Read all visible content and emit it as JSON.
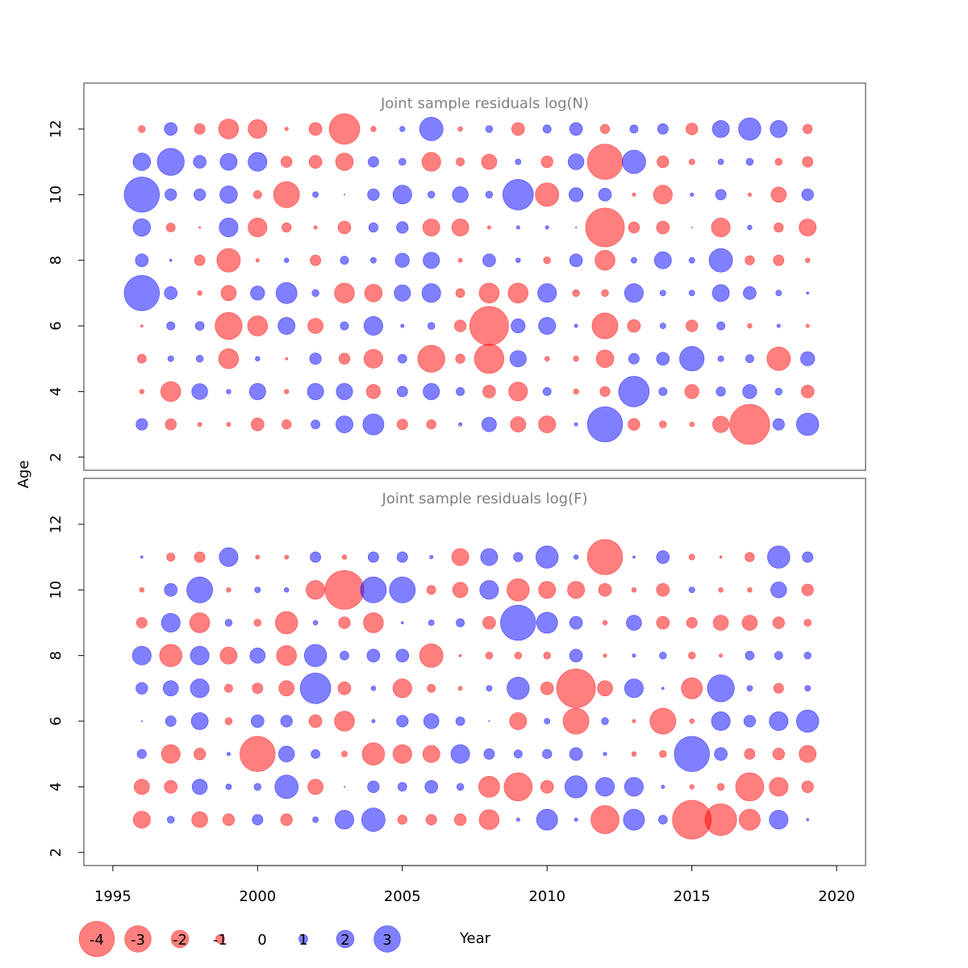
{
  "chart_data": {
    "type": "scatter",
    "subtype": "bubble",
    "xlabel": "Year",
    "ylabel": "Age",
    "xlim": [
      1994,
      2021
    ],
    "ylim": [
      1.6,
      13.4
    ],
    "xticks": [
      1995,
      2000,
      2005,
      2010,
      2015,
      2020
    ],
    "yticks": [
      2,
      4,
      6,
      8,
      10,
      12
    ],
    "years": [
      1996,
      1997,
      1998,
      1999,
      2000,
      2001,
      2002,
      2003,
      2004,
      2005,
      2006,
      2007,
      2008,
      2009,
      2010,
      2011,
      2012,
      2013,
      2014,
      2015,
      2016,
      2017,
      2018,
      2019
    ],
    "colors": {
      "negative": "#ff0000",
      "positive": "#0000ff",
      "opacity": 0.5
    },
    "legend": {
      "values": [
        -4,
        -3,
        -2,
        -1,
        0,
        1,
        2,
        3
      ],
      "labels": [
        "-4",
        "-3",
        "-2",
        "-1",
        "0",
        "1",
        "2",
        "3"
      ]
    },
    "panels": [
      {
        "title": "Joint sample residuals log(N)",
        "ages": [
          3,
          4,
          5,
          6,
          7,
          8,
          9,
          10,
          11,
          12
        ],
        "values": [
          [
            0.98,
            -0.95,
            -0.35,
            -0.35,
            -1.1,
            -0.8,
            0.75,
            1.45,
            1.8,
            -0.9,
            -0.8,
            0.3,
            1.25,
            -1.3,
            -1.45,
            0.3,
            3.0,
            -1.0,
            -0.6,
            -0.4,
            -1.4,
            -3.4,
            0.98,
            1.9
          ],
          [
            -0.4,
            -1.7,
            1.35,
            0.4,
            1.4,
            -0.4,
            1.4,
            1.4,
            -1.2,
            0.9,
            1.4,
            0.7,
            -1.1,
            -1.6,
            0.7,
            -0.45,
            -0.85,
            2.6,
            0.7,
            -1.2,
            0.8,
            1.2,
            0.6,
            -1.1
          ],
          [
            -0.75,
            0.5,
            0.6,
            -1.7,
            0.4,
            -0.2,
            0.98,
            -0.95,
            -1.6,
            0.75,
            -2.3,
            -0.8,
            -2.5,
            1.4,
            -0.4,
            -0.45,
            -1.5,
            0.9,
            1.1,
            2.1,
            0.5,
            0.7,
            -2.0,
            1.2
          ],
          [
            -0.2,
            0.7,
            0.75,
            -2.3,
            -1.7,
            1.45,
            -1.3,
            0.7,
            1.6,
            0.3,
            0.6,
            -1.0,
            -3.3,
            1.2,
            1.45,
            0.3,
            -2.2,
            -1.1,
            0.5,
            -1.0,
            0.7,
            -0.4,
            0.3,
            -0.3
          ],
          [
            3.0,
            1.1,
            -0.4,
            -1.3,
            1.2,
            1.8,
            0.6,
            -1.7,
            -1.5,
            1.4,
            1.6,
            -0.75,
            -1.7,
            -1.7,
            1.6,
            -0.6,
            -0.6,
            1.6,
            0.5,
            0.5,
            1.45,
            1.1,
            0.5,
            0.2
          ],
          [
            1.1,
            0.2,
            -0.9,
            -2.0,
            -0.3,
            0.4,
            -0.9,
            0.7,
            0.5,
            1.2,
            1.4,
            -0.35,
            1.1,
            0.4,
            -0.6,
            1.1,
            -1.7,
            0.5,
            1.45,
            0.5,
            2.0,
            -0.8,
            -0.9,
            -0.4
          ],
          [
            1.5,
            -0.75,
            -0.15,
            1.6,
            -1.6,
            -0.8,
            -0.3,
            -1.1,
            0.8,
            1.0,
            -1.45,
            -1.45,
            -0.3,
            0.3,
            0.3,
            0.1,
            -3.3,
            -0.95,
            -1.1,
            -0.1,
            -1.6,
            0.4,
            -0.8,
            -1.45
          ],
          [
            3.0,
            1.0,
            1.0,
            1.5,
            -0.7,
            -2.2,
            0.5,
            0.1,
            1.0,
            1.6,
            0.6,
            1.35,
            0.6,
            2.6,
            -2.0,
            1.2,
            1.1,
            -0.3,
            -1.6,
            0.3,
            0.9,
            -0.3,
            -1.3,
            1.0
          ],
          [
            1.5,
            2.3,
            1.1,
            1.45,
            1.6,
            -0.95,
            -1.1,
            -1.5,
            0.9,
            0.6,
            -1.6,
            -0.7,
            -1.3,
            0.5,
            -1.0,
            1.35,
            -3.0,
            2.0,
            -1.0,
            -0.5,
            0.5,
            0.6,
            -0.6,
            -0.9
          ],
          [
            -0.6,
            1.1,
            -0.9,
            -1.7,
            -1.6,
            -0.3,
            -1.1,
            -2.6,
            -0.45,
            0.45,
            2.0,
            -0.4,
            0.6,
            -1.1,
            0.7,
            1.1,
            -0.8,
            0.7,
            0.9,
            -1.0,
            1.45,
            1.9,
            1.45,
            -0.8
          ]
        ]
      },
      {
        "title": "Joint sample residuals log(F)",
        "ages": [
          3,
          4,
          5,
          6,
          7,
          8,
          9,
          10,
          11
        ],
        "values": [
          [
            -1.45,
            0.6,
            -1.35,
            -1.0,
            0.9,
            -1.0,
            0.5,
            1.6,
            2.0,
            -0.8,
            -0.9,
            -1.0,
            -1.7,
            0.3,
            1.8,
            0.3,
            -2.4,
            1.8,
            0.75,
            -3.3,
            -2.7,
            -1.8,
            1.6,
            0.2
          ],
          [
            -1.3,
            -1.1,
            1.3,
            0.5,
            0.6,
            2.0,
            -1.3,
            0.1,
            1.0,
            0.75,
            1.1,
            0.6,
            -1.8,
            -2.4,
            -1.1,
            1.9,
            1.6,
            1.6,
            0.3,
            -0.4,
            -0.6,
            -2.4,
            -1.6,
            -1.0
          ],
          [
            0.8,
            -1.6,
            -1.0,
            0.3,
            -3.0,
            1.35,
            0.75,
            -0.5,
            -1.9,
            -1.6,
            -1.45,
            1.6,
            0.9,
            0.7,
            0.8,
            1.1,
            0.3,
            -0.4,
            -0.6,
            3.0,
            1.1,
            -0.9,
            -1.0,
            -1.45
          ],
          [
            0.1,
            0.9,
            1.45,
            -0.6,
            1.1,
            1.0,
            -1.1,
            -1.7,
            0.3,
            1.0,
            1.3,
            0.75,
            0.1,
            -1.45,
            0.5,
            -2.2,
            0.6,
            -0.3,
            -2.2,
            -0.4,
            1.6,
            1.0,
            1.6,
            1.9
          ],
          [
            1.0,
            1.3,
            1.6,
            -0.7,
            -0.9,
            -1.3,
            2.6,
            -1.1,
            0.4,
            -1.6,
            -0.7,
            -0.35,
            0.5,
            1.9,
            -1.1,
            -3.3,
            -1.3,
            1.6,
            0.2,
            -1.8,
            2.3,
            0.5,
            -0.85,
            0.5
          ],
          [
            1.6,
            -1.9,
            1.6,
            -1.45,
            1.3,
            -1.7,
            1.9,
            0.75,
            1.1,
            1.1,
            -2.0,
            -0.2,
            -0.6,
            -0.6,
            -0.6,
            1.1,
            -0.3,
            0.3,
            0.6,
            -0.6,
            -0.3,
            0.75,
            0.7,
            0.6
          ],
          [
            -0.9,
            1.6,
            -1.7,
            0.6,
            -0.6,
            -1.9,
            0.4,
            -1.0,
            -1.7,
            0.2,
            0.5,
            0.7,
            -1.1,
            3.0,
            1.8,
            1.1,
            -0.4,
            1.3,
            -1.1,
            -0.9,
            -1.3,
            -1.3,
            -1.0,
            -0.6
          ],
          [
            -0.4,
            1.1,
            2.2,
            -0.4,
            0.5,
            0.4,
            -1.6,
            -3.3,
            2.2,
            2.2,
            -0.75,
            -1.3,
            1.6,
            -1.9,
            -1.45,
            -1.45,
            -1.1,
            -0.4,
            -1.1,
            0.5,
            -0.4,
            -0.4,
            1.35,
            -1.0
          ],
          [
            0.2,
            -0.7,
            -0.9,
            1.6,
            -0.35,
            -0.35,
            0.9,
            -0.4,
            0.9,
            0.9,
            0.3,
            -1.45,
            1.45,
            0.8,
            1.9,
            0.4,
            -3.0,
            0.2,
            1.1,
            -0.5,
            -0.2,
            -0.8,
            1.9,
            0.9
          ]
        ]
      }
    ]
  }
}
